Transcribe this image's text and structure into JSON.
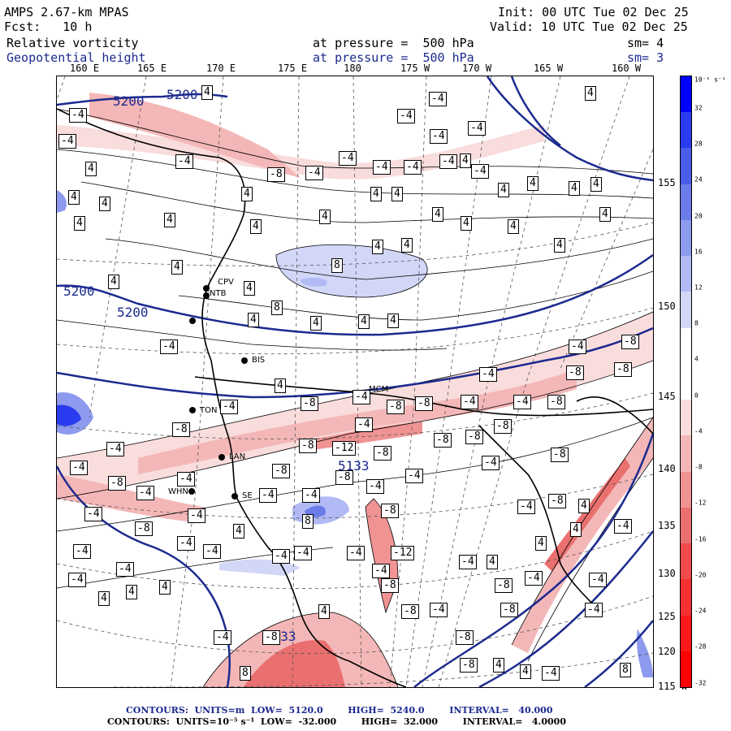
{
  "header": {
    "model": "AMPS 2.67-km MPAS",
    "forecast": "Fcst:   10 h",
    "field1": "Relative vorticity",
    "field2": "Geopotential height",
    "init": "Init: 00 UTC Tue 02 Dec 25",
    "valid": "Valid: 10 UTC Tue 02 Dec 25",
    "pressure1": "at pressure =  500 hPa",
    "pressure2": "at pressure =  500 hPa",
    "sm1": "sm= 4",
    "sm2": "sm= 3"
  },
  "lon_labels": [
    "160 E",
    "165 E",
    "170 E",
    "175 E",
    "180",
    "175 W",
    "170 W",
    "165 W",
    "160 W"
  ],
  "lat_labels": [
    "155 W",
    "150 W",
    "145 W",
    "140 W",
    "135 W",
    "130 W",
    "125 W",
    "120 W",
    "115 W"
  ],
  "colorbar": {
    "unit": "10⁻⁵ s⁻¹",
    "ticks": [
      "32",
      "28",
      "24",
      "20",
      "16",
      "12",
      "8",
      "4",
      "0",
      "-4",
      "-8",
      "-12",
      "-16",
      "-20",
      "-24",
      "-28",
      "-32"
    ],
    "colors": [
      "#0000ff",
      "#2a3cf0",
      "#4a5de8",
      "#6b7ce8",
      "#8d9aee",
      "#b1baf4",
      "#d2d7f8",
      "#ffffff",
      "#ffffff",
      "#f9dcdc",
      "#f4b7b7",
      "#ef9393",
      "#ea6f6f",
      "#f04a4a",
      "#f43030",
      "#fa1818",
      "#ff0000"
    ]
  },
  "height_labels": [
    "5200",
    "5200",
    "5200",
    "5200",
    "5133",
    "5133"
  ],
  "vort_labels": [
    "-4",
    "4",
    "8",
    "-8",
    "-12"
  ],
  "stations": [
    "CPV",
    "NTB",
    "BIS",
    "TON",
    "LAN",
    "WHN",
    "SE",
    "MCM"
  ],
  "footer": {
    "line1": "CONTOURS:  UNITS=m  LOW=  5120.0        HIGH=  5240.0        INTERVAL=   40.000",
    "line2": "CONTOURS:  UNITS=10⁻⁵ s⁻¹  LOW=  -32.000        HIGH=  32.000        INTERVAL=   4.0000"
  }
}
